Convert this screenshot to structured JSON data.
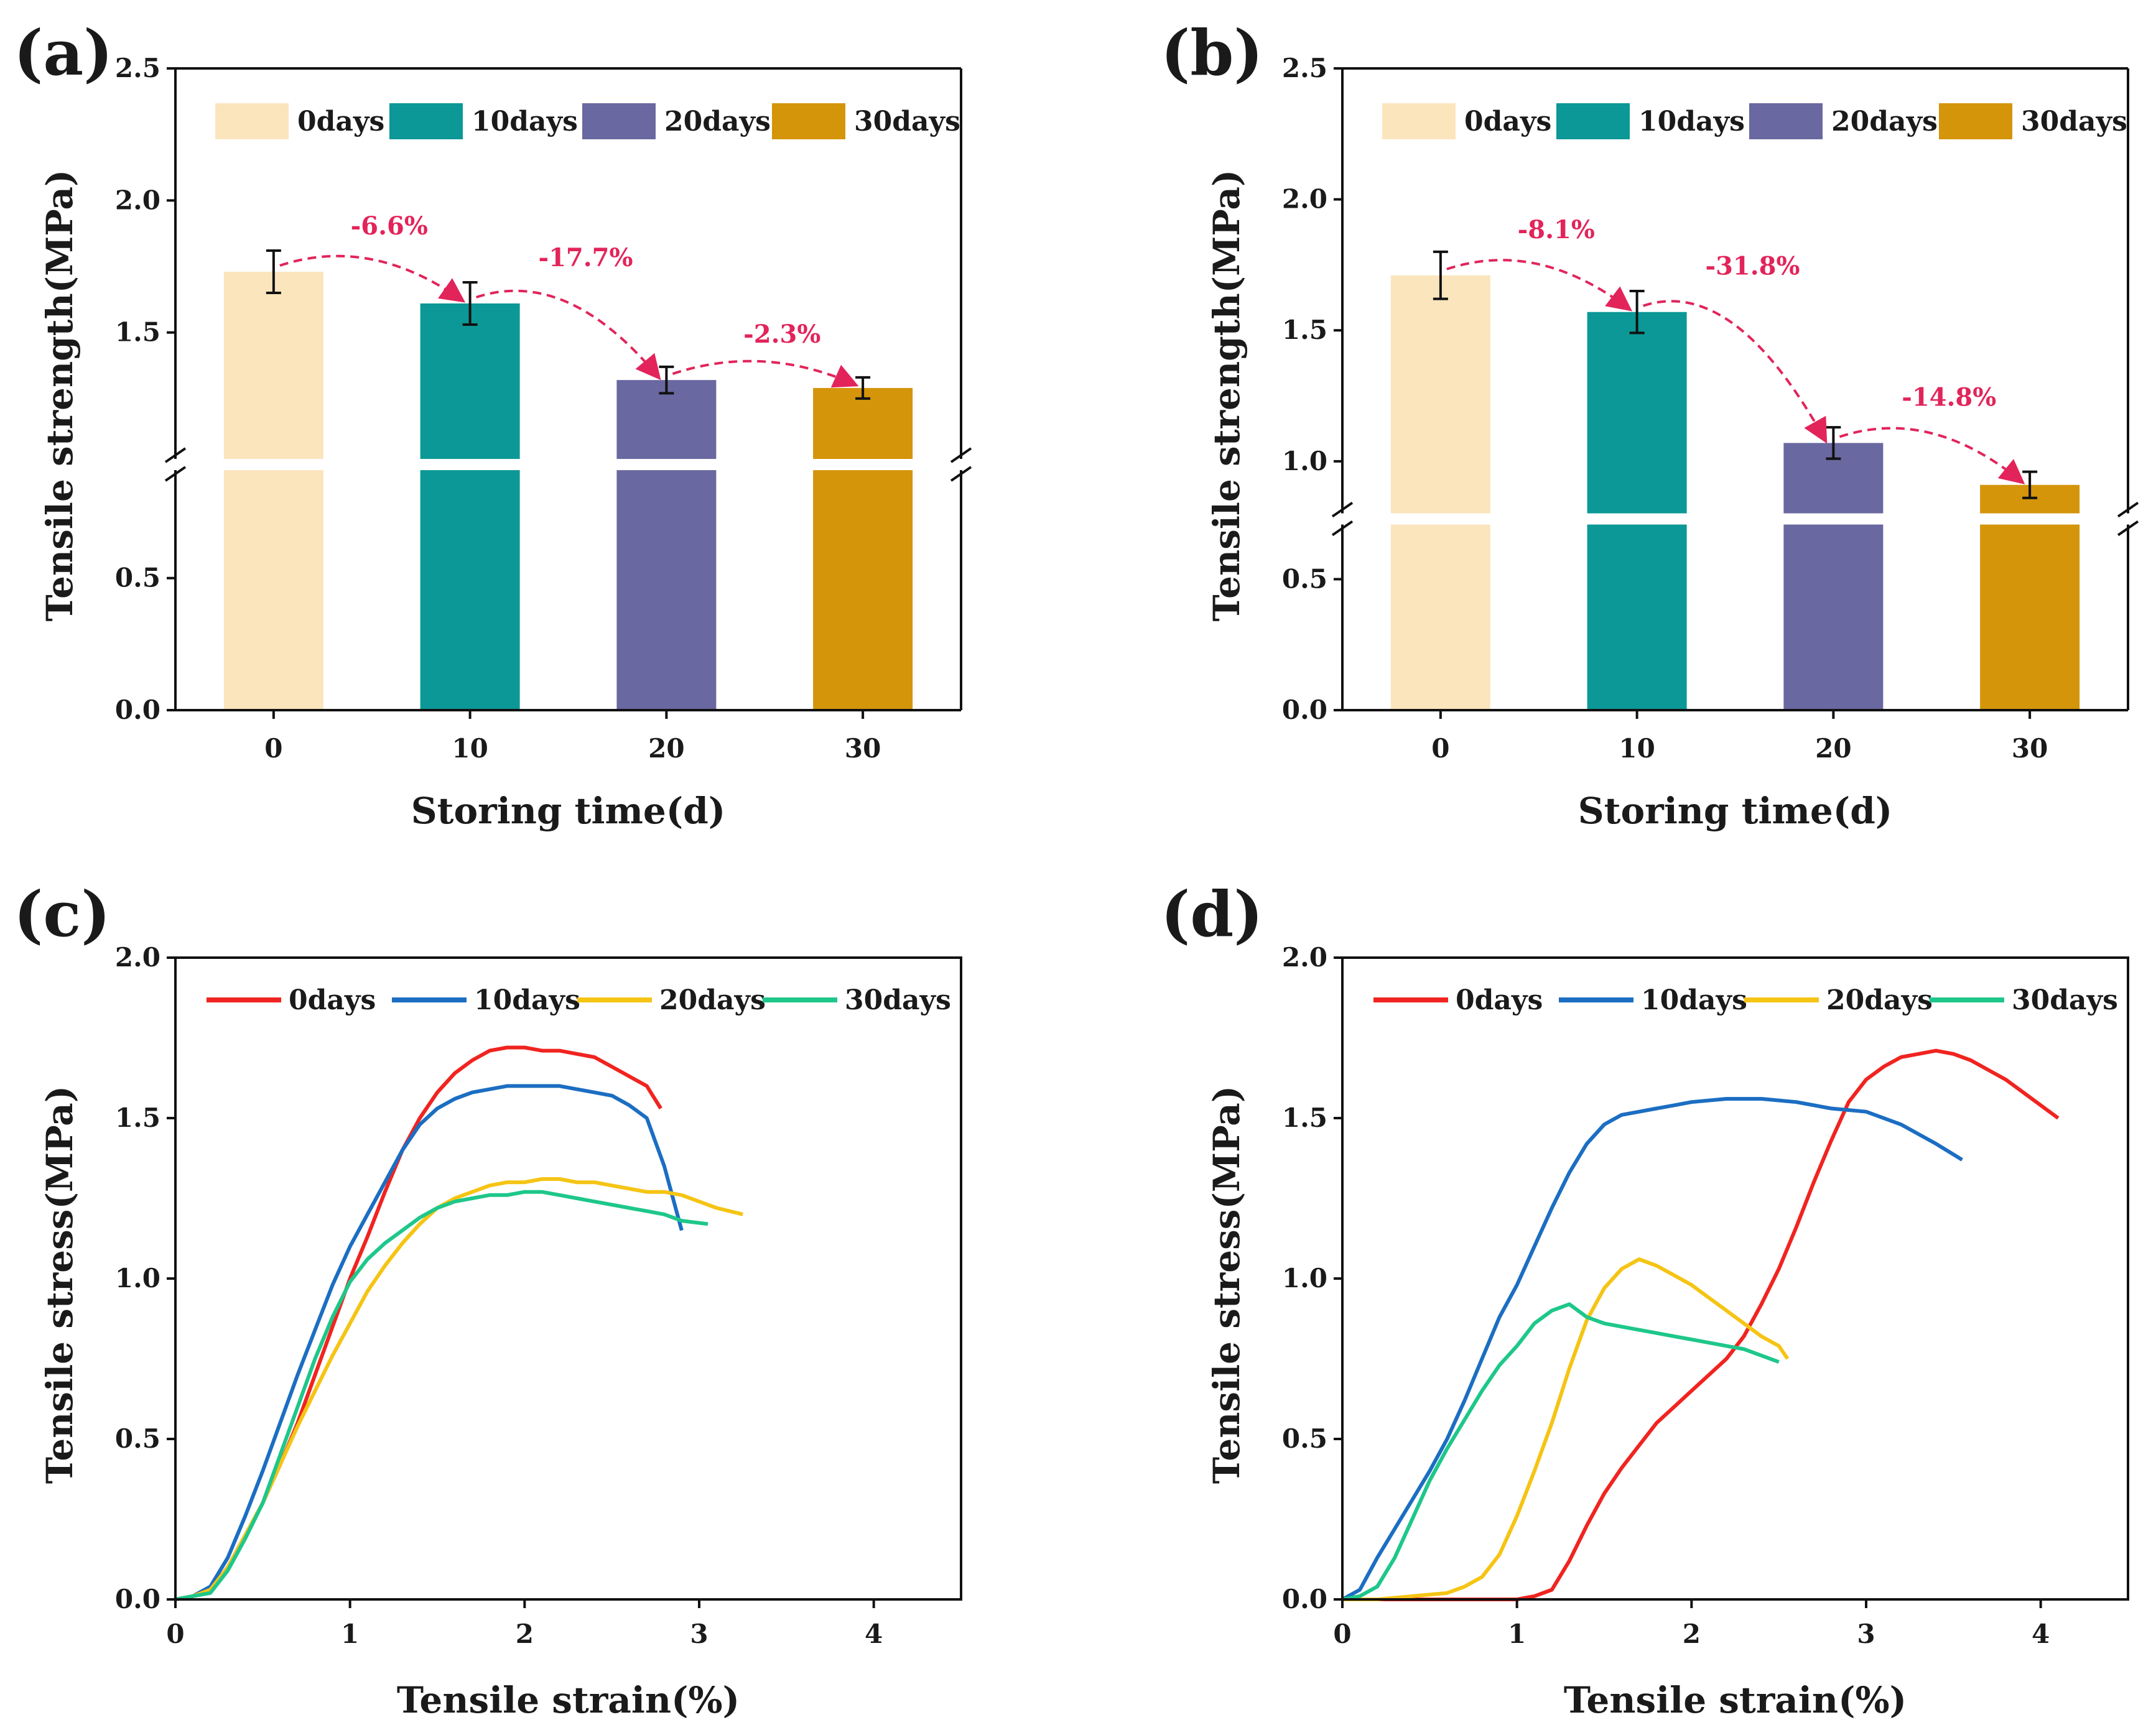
{
  "chart_data": [
    {
      "panel": "(a)",
      "type": "bar",
      "xlabel": "Storing time(d)",
      "ylabel": "Tensile strength(MPa)",
      "categories": [
        "0",
        "10",
        "20",
        "30"
      ],
      "values": [
        1.73,
        1.61,
        1.32,
        1.29
      ],
      "errors": [
        0.08,
        0.08,
        0.05,
        0.04
      ],
      "colors": [
        "#fbe5bd",
        "#0b9896",
        "#6a68a0",
        "#d4950b"
      ],
      "legend": [
        "0days",
        "10days",
        "20days",
        "30days"
      ],
      "yticks": [
        "0.0",
        "0.5",
        "1.5",
        "2.0",
        "2.5"
      ],
      "ylim": [
        0,
        2.5
      ],
      "axis_break": [
        0.93,
        1.0
      ],
      "annotations": [
        "-6.6%",
        "-17.7%",
        "-2.3%"
      ]
    },
    {
      "panel": "(b)",
      "type": "bar",
      "xlabel": "Storing time(d)",
      "ylabel": "Tensile strength(MPa)",
      "categories": [
        "0",
        "10",
        "20",
        "30"
      ],
      "values": [
        1.71,
        1.57,
        1.07,
        0.91
      ],
      "errors": [
        0.09,
        0.08,
        0.06,
        0.05
      ],
      "colors": [
        "#fbe5bd",
        "#0b9896",
        "#6a68a0",
        "#d4950b"
      ],
      "legend": [
        "0days",
        "10days",
        "20days",
        "30days"
      ],
      "yticks": [
        "0.0",
        "0.5",
        "1.0",
        "1.5",
        "2.0",
        "2.5"
      ],
      "ylim": [
        0,
        2.5
      ],
      "axis_break": [
        0.73,
        0.78
      ],
      "annotations": [
        "-8.1%",
        "-31.8%",
        "-14.8%"
      ]
    },
    {
      "panel": "(c)",
      "type": "line",
      "xlabel": "Tensile strain(%)",
      "ylabel": "Tensile stress(MPa)",
      "xlim": [
        0,
        4.5
      ],
      "ylim": [
        0,
        2.0
      ],
      "xticks": [
        "0",
        "1",
        "2",
        "3",
        "4"
      ],
      "yticks": [
        "0.0",
        "0.5",
        "1.0",
        "1.5",
        "2.0"
      ],
      "legend": [
        "0days",
        "10days",
        "20days",
        "30days"
      ],
      "series": [
        {
          "name": "0days",
          "color": "#f02420",
          "x": [
            0,
            0.1,
            0.2,
            0.3,
            0.4,
            0.5,
            0.6,
            0.7,
            0.8,
            0.9,
            1.0,
            1.1,
            1.2,
            1.3,
            1.4,
            1.5,
            1.6,
            1.7,
            1.8,
            1.9,
            2.0,
            2.1,
            2.2,
            2.3,
            2.4,
            2.5,
            2.6,
            2.7,
            2.78
          ],
          "y": [
            0,
            0.01,
            0.03,
            0.1,
            0.2,
            0.3,
            0.42,
            0.55,
            0.7,
            0.85,
            1.0,
            1.13,
            1.27,
            1.4,
            1.5,
            1.58,
            1.64,
            1.68,
            1.71,
            1.72,
            1.72,
            1.71,
            1.71,
            1.7,
            1.69,
            1.66,
            1.63,
            1.6,
            1.53
          ]
        },
        {
          "name": "10days",
          "color": "#1b6ec2",
          "x": [
            0,
            0.1,
            0.2,
            0.3,
            0.4,
            0.5,
            0.6,
            0.7,
            0.8,
            0.9,
            1.0,
            1.1,
            1.2,
            1.3,
            1.4,
            1.5,
            1.6,
            1.7,
            1.8,
            1.9,
            2.0,
            2.1,
            2.2,
            2.3,
            2.4,
            2.5,
            2.6,
            2.7,
            2.8,
            2.9
          ],
          "y": [
            0,
            0.01,
            0.04,
            0.13,
            0.26,
            0.4,
            0.55,
            0.7,
            0.84,
            0.98,
            1.1,
            1.2,
            1.3,
            1.4,
            1.48,
            1.53,
            1.56,
            1.58,
            1.59,
            1.6,
            1.6,
            1.6,
            1.6,
            1.59,
            1.58,
            1.57,
            1.54,
            1.5,
            1.35,
            1.15
          ]
        },
        {
          "name": "20days",
          "color": "#f5c414",
          "x": [
            0,
            0.1,
            0.2,
            0.3,
            0.4,
            0.5,
            0.6,
            0.7,
            0.8,
            0.9,
            1.0,
            1.1,
            1.2,
            1.3,
            1.4,
            1.5,
            1.6,
            1.7,
            1.8,
            1.9,
            2.0,
            2.1,
            2.2,
            2.3,
            2.4,
            2.5,
            2.6,
            2.7,
            2.8,
            2.9,
            3.0,
            3.1,
            3.25
          ],
          "y": [
            0,
            0.01,
            0.03,
            0.1,
            0.2,
            0.3,
            0.42,
            0.54,
            0.65,
            0.76,
            0.86,
            0.96,
            1.04,
            1.11,
            1.17,
            1.22,
            1.25,
            1.27,
            1.29,
            1.3,
            1.3,
            1.31,
            1.31,
            1.3,
            1.3,
            1.29,
            1.28,
            1.27,
            1.27,
            1.26,
            1.24,
            1.22,
            1.2
          ]
        },
        {
          "name": "30days",
          "color": "#1ec78a",
          "x": [
            0,
            0.1,
            0.2,
            0.3,
            0.4,
            0.5,
            0.6,
            0.7,
            0.8,
            0.9,
            1.0,
            1.1,
            1.2,
            1.3,
            1.4,
            1.5,
            1.6,
            1.7,
            1.8,
            1.9,
            2.0,
            2.1,
            2.2,
            2.3,
            2.4,
            2.5,
            2.6,
            2.7,
            2.8,
            2.9,
            3.05
          ],
          "y": [
            0,
            0.01,
            0.02,
            0.09,
            0.19,
            0.3,
            0.45,
            0.6,
            0.75,
            0.88,
            0.99,
            1.06,
            1.11,
            1.15,
            1.19,
            1.22,
            1.24,
            1.25,
            1.26,
            1.26,
            1.27,
            1.27,
            1.26,
            1.25,
            1.24,
            1.23,
            1.22,
            1.21,
            1.2,
            1.18,
            1.17
          ]
        }
      ]
    },
    {
      "panel": "(d)",
      "type": "line",
      "xlabel": "Tensile strain(%)",
      "ylabel": "Tensile stress(MPa)",
      "xlim": [
        0,
        4.5
      ],
      "ylim": [
        0,
        2.0
      ],
      "xticks": [
        "0",
        "1",
        "2",
        "3",
        "4"
      ],
      "yticks": [
        "0.0",
        "0.5",
        "1.0",
        "1.5",
        "2.0"
      ],
      "legend": [
        "0days",
        "10days",
        "20days",
        "30days"
      ],
      "series": [
        {
          "name": "0days",
          "color": "#f02420",
          "x": [
            0,
            0.5,
            1.0,
            1.1,
            1.2,
            1.3,
            1.4,
            1.5,
            1.6,
            1.7,
            1.8,
            1.9,
            2.0,
            2.1,
            2.2,
            2.3,
            2.4,
            2.5,
            2.6,
            2.7,
            2.8,
            2.9,
            3.0,
            3.1,
            3.2,
            3.3,
            3.4,
            3.5,
            3.6,
            3.7,
            3.8,
            3.9,
            4.0,
            4.1
          ],
          "y": [
            0,
            0,
            0,
            0.01,
            0.03,
            0.12,
            0.23,
            0.33,
            0.41,
            0.48,
            0.55,
            0.6,
            0.65,
            0.7,
            0.75,
            0.82,
            0.92,
            1.03,
            1.16,
            1.3,
            1.43,
            1.55,
            1.62,
            1.66,
            1.69,
            1.7,
            1.71,
            1.7,
            1.68,
            1.65,
            1.62,
            1.58,
            1.54,
            1.5
          ]
        },
        {
          "name": "10days",
          "color": "#1b6ec2",
          "x": [
            0,
            0.1,
            0.2,
            0.3,
            0.4,
            0.5,
            0.6,
            0.7,
            0.8,
            0.9,
            1.0,
            1.1,
            1.2,
            1.3,
            1.4,
            1.5,
            1.6,
            1.7,
            1.8,
            1.9,
            2.0,
            2.2,
            2.4,
            2.6,
            2.8,
            3.0,
            3.2,
            3.4,
            3.55
          ],
          "y": [
            0,
            0.03,
            0.13,
            0.22,
            0.31,
            0.4,
            0.5,
            0.62,
            0.75,
            0.88,
            0.98,
            1.1,
            1.22,
            1.33,
            1.42,
            1.48,
            1.51,
            1.52,
            1.53,
            1.54,
            1.55,
            1.56,
            1.56,
            1.55,
            1.53,
            1.52,
            1.48,
            1.42,
            1.37
          ]
        },
        {
          "name": "20days",
          "color": "#f5c414",
          "x": [
            0,
            0.2,
            0.4,
            0.6,
            0.7,
            0.8,
            0.9,
            1.0,
            1.1,
            1.2,
            1.3,
            1.4,
            1.5,
            1.6,
            1.7,
            1.8,
            1.9,
            2.0,
            2.1,
            2.2,
            2.3,
            2.4,
            2.5,
            2.55
          ],
          "y": [
            0,
            0,
            0.01,
            0.02,
            0.04,
            0.07,
            0.14,
            0.26,
            0.4,
            0.55,
            0.72,
            0.87,
            0.97,
            1.03,
            1.06,
            1.04,
            1.01,
            0.98,
            0.94,
            0.9,
            0.86,
            0.82,
            0.79,
            0.75
          ]
        },
        {
          "name": "30days",
          "color": "#1ec78a",
          "x": [
            0,
            0.1,
            0.2,
            0.3,
            0.4,
            0.5,
            0.6,
            0.7,
            0.8,
            0.9,
            1.0,
            1.1,
            1.2,
            1.3,
            1.4,
            1.5,
            1.6,
            1.7,
            1.8,
            1.9,
            2.0,
            2.1,
            2.2,
            2.3,
            2.4,
            2.5
          ],
          "y": [
            0,
            0.01,
            0.04,
            0.13,
            0.25,
            0.37,
            0.47,
            0.56,
            0.65,
            0.73,
            0.79,
            0.86,
            0.9,
            0.92,
            0.88,
            0.86,
            0.85,
            0.84,
            0.83,
            0.82,
            0.81,
            0.8,
            0.79,
            0.78,
            0.76,
            0.74
          ]
        }
      ]
    }
  ]
}
